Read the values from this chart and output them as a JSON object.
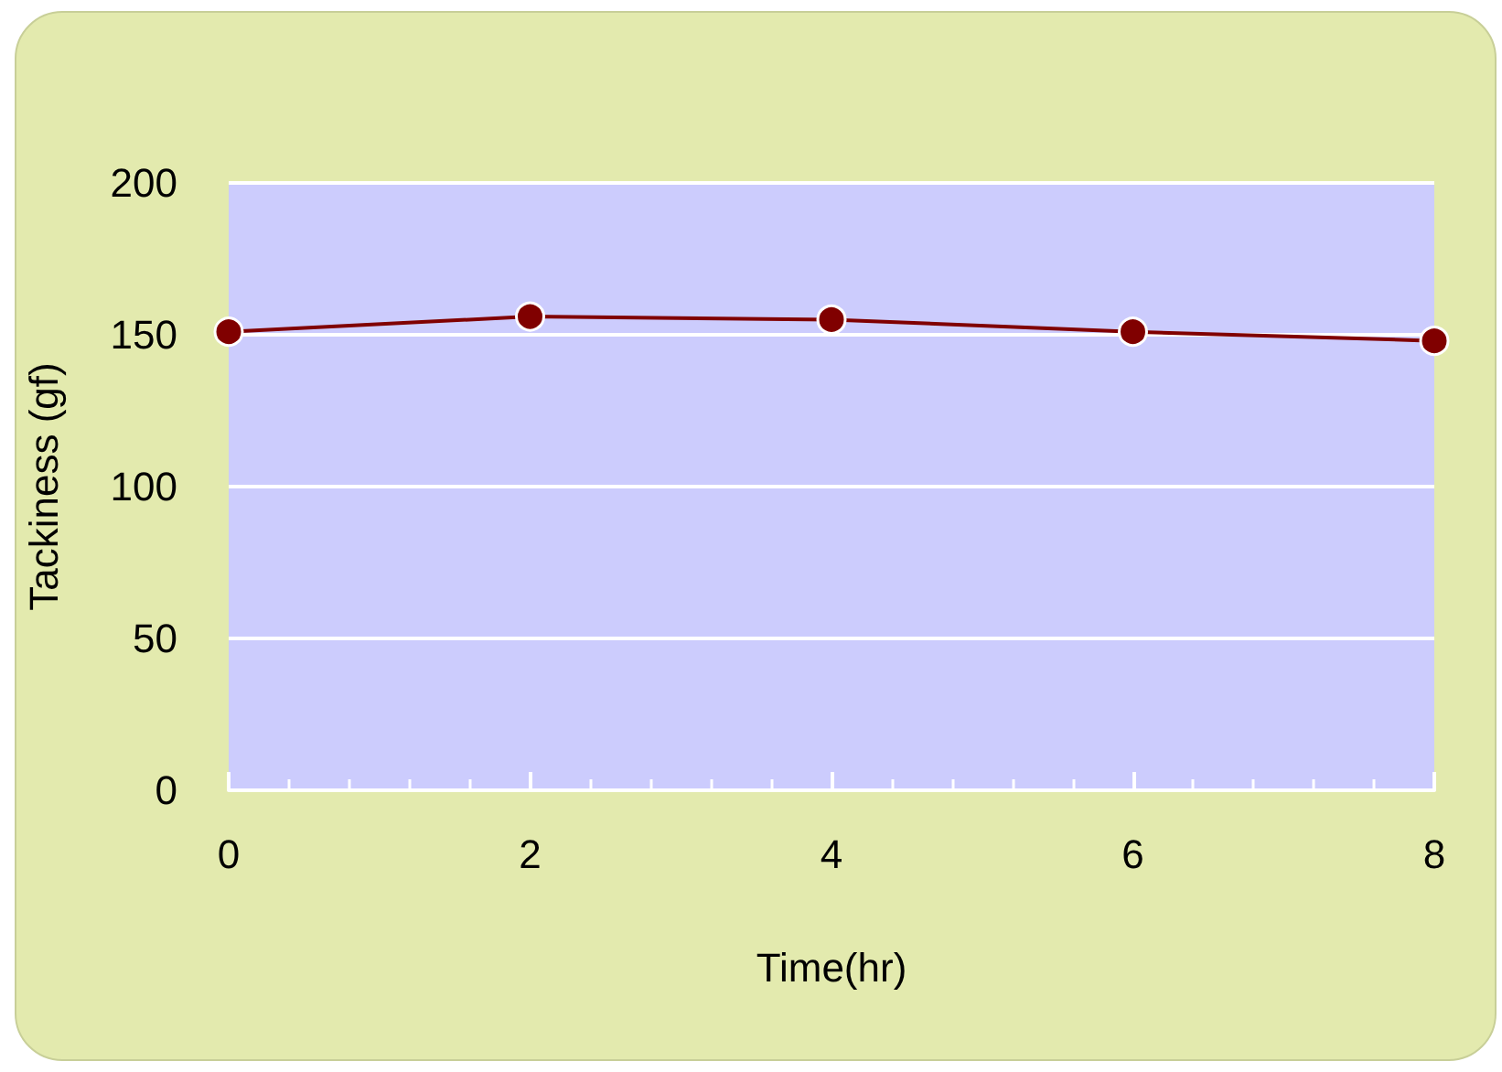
{
  "chart_data": {
    "type": "line",
    "xlabel": "Time(hr)",
    "ylabel": "Tackiness (gf)",
    "x": [
      0,
      2,
      4,
      6,
      8
    ],
    "series": [
      {
        "color": "#800000",
        "values": [
          151,
          156,
          155,
          151,
          148
        ]
      }
    ],
    "xlim": [
      0,
      8
    ],
    "xticks": [
      0,
      2,
      4,
      6,
      8
    ],
    "ylim": [
      0,
      200
    ],
    "yticks": [
      0,
      50,
      100,
      150,
      200
    ],
    "grid": "y",
    "marker": "circle",
    "line_style": "solid"
  }
}
